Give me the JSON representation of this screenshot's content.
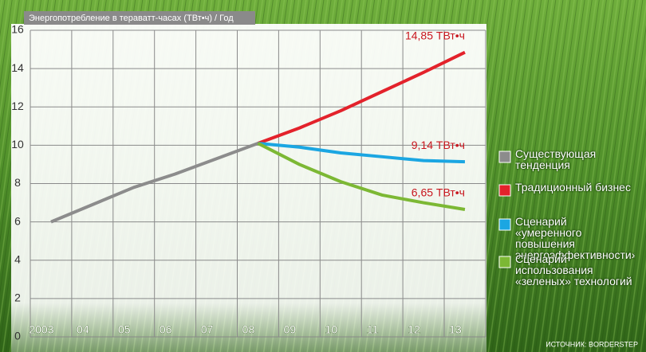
{
  "chart_data": {
    "type": "line",
    "y_label": "Энергопотребление в тераватт-часах (ТВт•ч) / Год",
    "source": "ИСТОЧНИК: BORDERSTEP",
    "categories": [
      "2003",
      "04",
      "05",
      "06",
      "07",
      "08",
      "09",
      "10",
      "11",
      "12",
      "13"
    ],
    "ylim": [
      0,
      16
    ],
    "yticks": [
      0,
      2,
      4,
      6,
      8,
      10,
      12,
      14,
      16
    ],
    "grid": true,
    "legend": "right",
    "series": [
      {
        "name": "Существующая тенденция",
        "color": "#8c8c8c",
        "values": [
          6,
          6.9,
          7.8,
          8.5,
          9.3,
          10.1,
          null,
          null,
          null,
          null,
          null
        ]
      },
      {
        "name": "Традиционный бизнес",
        "color": "#e3222b",
        "values": [
          null,
          null,
          null,
          null,
          null,
          10.1,
          10.9,
          11.8,
          12.8,
          13.8,
          14.85
        ],
        "value_labels": [
          null,
          null,
          null,
          null,
          null,
          null,
          null,
          null,
          null,
          null,
          "14,85 ТВт•ч"
        ]
      },
      {
        "name": "Сценарий «умеренного повышения энергоэффективности»",
        "color": "#1ba6e2",
        "values": [
          null,
          null,
          null,
          null,
          null,
          10.1,
          9.9,
          9.6,
          9.4,
          9.2,
          9.14
        ],
        "value_labels": [
          null,
          null,
          null,
          null,
          null,
          null,
          null,
          null,
          null,
          null,
          "9,14 ТВт•ч"
        ]
      },
      {
        "name": "Сценарий использования «зеленых» технологий",
        "color": "#7cb834",
        "values": [
          null,
          null,
          null,
          null,
          null,
          10.1,
          9.0,
          8.1,
          7.4,
          7.0,
          6.65
        ],
        "value_labels": [
          null,
          null,
          null,
          null,
          null,
          null,
          null,
          null,
          null,
          null,
          "6,65 ТВт•ч"
        ]
      }
    ]
  }
}
